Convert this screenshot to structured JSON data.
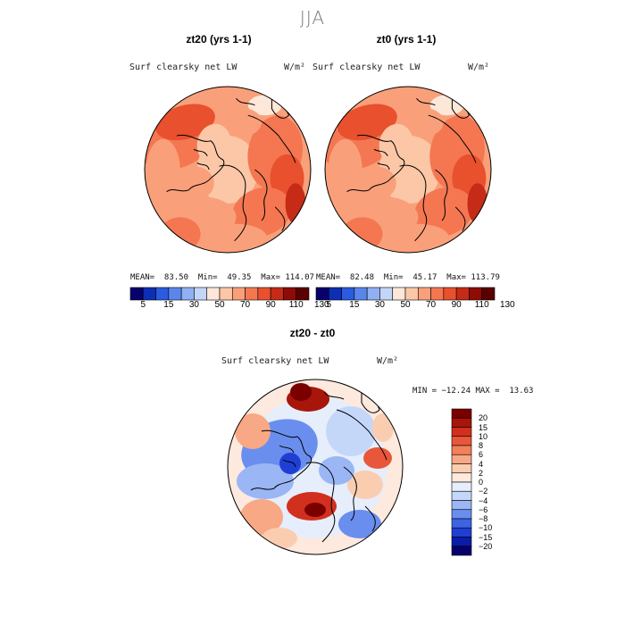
{
  "title": "JJA",
  "colors": {
    "abs_scale": [
      "#08006b",
      "#0c2fb5",
      "#2a5be0",
      "#5a86ec",
      "#90b0f3",
      "#c4d6f8",
      "#fde7d8",
      "#fbc7a6",
      "#f9a07a",
      "#f47752",
      "#e8502e",
      "#c52b17",
      "#8f0b05",
      "#5a0000"
    ],
    "diff_scale": [
      "#07006b",
      "#0a1da8",
      "#1f3fd4",
      "#3d63e4",
      "#6a8eee",
      "#9ab6f4",
      "#c5d7f9",
      "#e6eefc",
      "#fde9dd",
      "#fbcdb0",
      "#f8a884",
      "#f28059",
      "#e9573a",
      "#d1301e",
      "#a8150a",
      "#7a0000"
    ],
    "coast": "#000000"
  },
  "panels": [
    {
      "title": "zt20 (yrs 1-1)",
      "var_label": "Surf clearsky net LW",
      "units": "W/m²",
      "stats": "MEAN=  83.50  Min=  49.35  Max= 114.07"
    },
    {
      "title": "zt0 (yrs 1-1)",
      "var_label": "Surf clearsky net LW",
      "units": "W/m²",
      "stats": "MEAN=  82.48  Min=  45.17  Max= 113.79"
    }
  ],
  "abs_ticks": [
    "5",
    "15",
    "30",
    "50",
    "70",
    "90",
    "110",
    "130"
  ],
  "diff_panel": {
    "title": "zt20 - zt0",
    "var_label": "Surf clearsky net LW",
    "units": "W/m²",
    "stats": "MIN = −12.24 MAX =  13.63"
  },
  "diff_ticks": [
    "20",
    "15",
    "10",
    "8",
    "6",
    "4",
    "2",
    "0",
    "−2",
    "−4",
    "−6",
    "−8",
    "−10",
    "−15",
    "−20"
  ]
}
